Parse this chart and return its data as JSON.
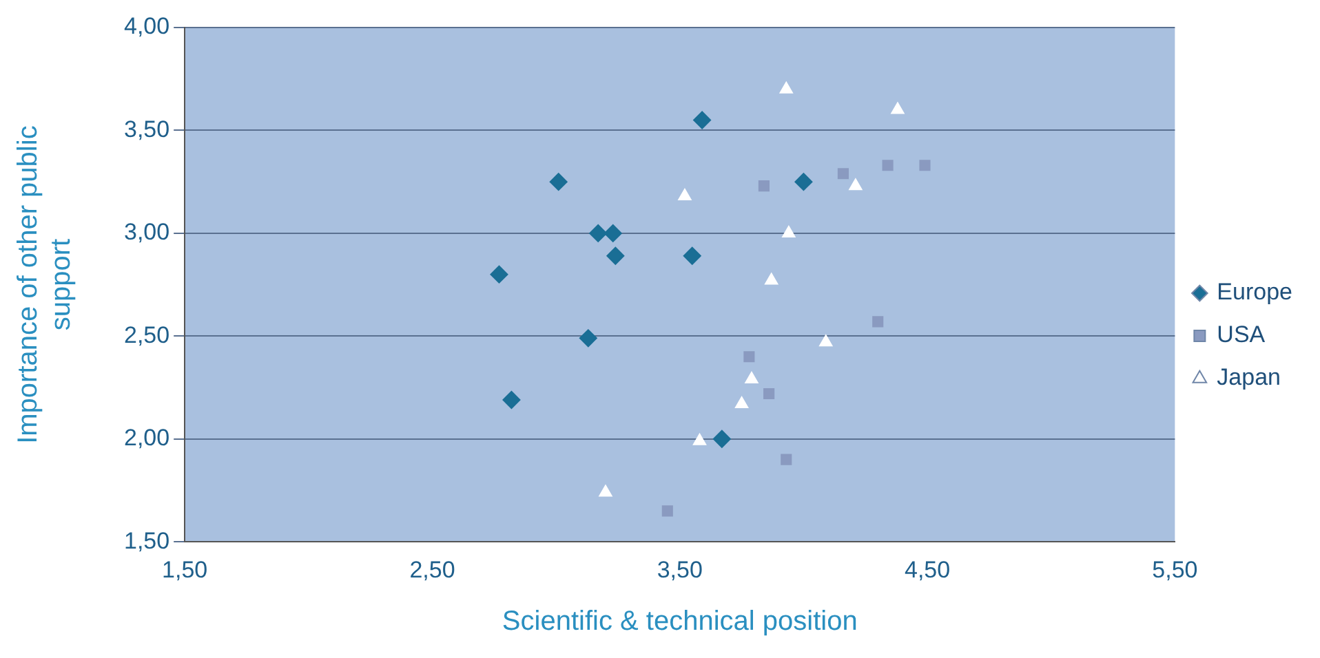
{
  "chart_data": {
    "type": "scatter",
    "xlabel": "Scientific & technical position",
    "ylabel": "Importance of other public support",
    "xlim": [
      1.5,
      5.5
    ],
    "xticks": [
      {
        "value": 1.5,
        "label": "1,50"
      },
      {
        "value": 2.5,
        "label": "2,50"
      },
      {
        "value": 3.5,
        "label": "3,50"
      },
      {
        "value": 4.5,
        "label": "4,50"
      },
      {
        "value": 5.5,
        "label": "5,50"
      }
    ],
    "ylim": [
      1.5,
      4
    ],
    "yticks": [
      {
        "value": 1.5,
        "label": "1,50"
      },
      {
        "value": 2,
        "label": "2,00"
      },
      {
        "value": 2.5,
        "label": "2,50"
      },
      {
        "value": 3,
        "label": "3,00"
      },
      {
        "value": 3.5,
        "label": "3,50"
      },
      {
        "value": 4,
        "label": "4,00"
      }
    ],
    "grid": "y",
    "legend": "right",
    "series": [
      {
        "name": "Europe",
        "color": "#1a6e95",
        "marker": "diamond",
        "x": [
          3.59,
          3.01,
          3.17,
          3.23,
          3.24,
          3.55,
          2.77,
          3.13,
          2.82,
          3.67,
          4.0
        ],
        "values": [
          3.55,
          3.25,
          3.0,
          3.0,
          2.89,
          2.89,
          2.8,
          2.49,
          2.19,
          2.0,
          3.25
        ]
      },
      {
        "name": "USA",
        "color": "#8a9ac0",
        "marker": "square",
        "x": [
          3.84,
          4.16,
          4.34,
          4.49,
          4.3,
          3.78,
          3.86,
          3.93,
          3.45
        ],
        "values": [
          3.23,
          3.29,
          3.33,
          3.33,
          2.57,
          2.4,
          2.22,
          1.9,
          1.65
        ]
      },
      {
        "name": "Japan",
        "color": "#ffffff",
        "marker": "triangle",
        "x": [
          3.93,
          4.38,
          3.52,
          4.21,
          3.94,
          3.87,
          4.09,
          3.79,
          3.75,
          3.58,
          3.2
        ],
        "values": [
          3.7,
          3.6,
          3.18,
          3.23,
          3.0,
          2.77,
          2.47,
          2.29,
          2.17,
          1.99,
          1.74
        ]
      }
    ]
  }
}
